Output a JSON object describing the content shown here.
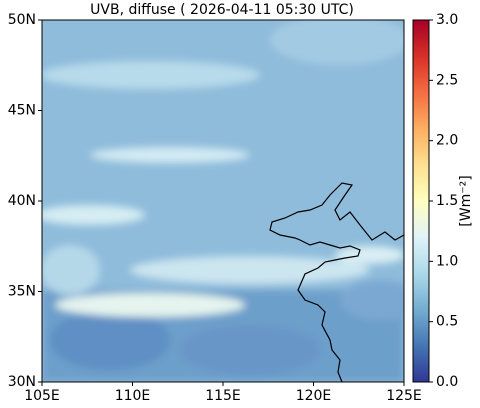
{
  "chart_data": {
    "type": "map",
    "title": "UVB, diffuse ( 2026-04-11 05:30 UTC)",
    "xlim": [
      105,
      125
    ],
    "xticks": [
      {
        "value": 105,
        "label": "105E"
      },
      {
        "value": 110,
        "label": "110E"
      },
      {
        "value": 115,
        "label": "115E"
      },
      {
        "value": 120,
        "label": "120E"
      },
      {
        "value": 125,
        "label": "125E"
      }
    ],
    "ylim": [
      30,
      50
    ],
    "yticks": [
      {
        "value": 30,
        "label": "30N"
      },
      {
        "value": 35,
        "label": "35N"
      },
      {
        "value": 40,
        "label": "40N"
      },
      {
        "value": 45,
        "label": "45N"
      },
      {
        "value": 50,
        "label": "50N"
      }
    ],
    "colorbar": {
      "label": "[Wm⁻²]",
      "lim": [
        0,
        3
      ],
      "ticks": [
        {
          "value": 0,
          "label": "0.0"
        },
        0.5,
        {
          "value": 1,
          "label": "1.0"
        },
        1.5,
        {
          "value": 2,
          "label": "2.0"
        },
        2.5,
        {
          "value": 3,
          "label": "3.0"
        }
      ],
      "colors": [
        "#313695",
        "#4575b4",
        "#74add1",
        "#abd9e9",
        "#e0f3f8",
        "#ffffbf",
        "#fee090",
        "#fdae61",
        "#f46d43",
        "#d73027",
        "#a50026"
      ]
    }
  }
}
